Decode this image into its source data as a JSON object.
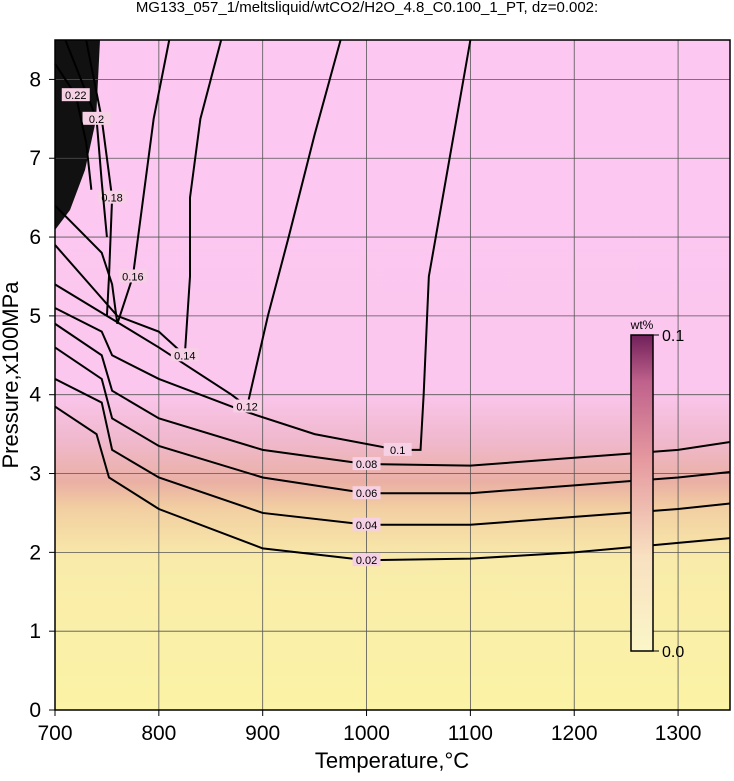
{
  "chart_data": {
    "type": "contour",
    "title": "MG133_057_1/meltsliquid/wtCO2/H2O_4.8_C0.100_1_PT, dz=0.002:",
    "x_label": "Temperature,°C",
    "y_label": "Pressure,x100MPa",
    "xlim": [
      700,
      1350
    ],
    "ylim": [
      0,
      8.5
    ],
    "xticks": [
      700,
      800,
      900,
      1000,
      1100,
      1200,
      1300
    ],
    "yticks": [
      0,
      1,
      2,
      3,
      4,
      5,
      6,
      7,
      8
    ],
    "grid": true,
    "colorbar": {
      "label": "wt%",
      "lim": [
        0,
        0.1
      ],
      "ticks": [
        {
          "value": 0,
          "label": "0.0"
        },
        0.1
      ]
    },
    "contours": [
      {
        "level": 0.02,
        "x": [
          700,
          740,
          752,
          800,
          900,
          1000,
          1100,
          1200,
          1300,
          1350
        ],
        "y": [
          3.85,
          3.5,
          2.95,
          2.55,
          2.05,
          1.9,
          1.92,
          2.0,
          2.12,
          2.18
        ]
      },
      {
        "level": 0.04,
        "x": [
          700,
          745,
          755,
          800,
          900,
          1000,
          1100,
          1200,
          1300,
          1350
        ],
        "y": [
          4.2,
          3.9,
          3.3,
          2.95,
          2.5,
          2.35,
          2.35,
          2.45,
          2.55,
          2.62
        ]
      },
      {
        "level": 0.06,
        "x": [
          700,
          745,
          755,
          800,
          900,
          1000,
          1100,
          1200,
          1300,
          1350
        ],
        "y": [
          4.6,
          4.2,
          3.7,
          3.35,
          2.95,
          2.75,
          2.75,
          2.85,
          2.95,
          3.02
        ]
      },
      {
        "level": 0.08,
        "x": [
          700,
          745,
          755,
          800,
          900,
          1000,
          1100,
          1200,
          1300,
          1350
        ],
        "y": [
          4.9,
          4.5,
          4.05,
          3.7,
          3.3,
          3.12,
          3.1,
          3.2,
          3.3,
          3.4
        ]
      },
      {
        "level": 0.1,
        "x": [
          700,
          745,
          755,
          800,
          880,
          950,
          1030,
          1052,
          1055,
          1060,
          1080,
          1100
        ],
        "y": [
          5.1,
          4.8,
          4.5,
          4.2,
          3.8,
          3.5,
          3.3,
          3.3,
          4.0,
          5.5,
          7.0,
          8.5
        ]
      },
      {
        "level": 0.12,
        "x": [
          700,
          750,
          800,
          870,
          885,
          905,
          925,
          950,
          975
        ],
        "y": [
          5.4,
          5.0,
          4.6,
          4.0,
          3.85,
          5.0,
          6.0,
          7.3,
          8.5
        ]
      },
      {
        "level": 0.14,
        "x": [
          700,
          740,
          760,
          800,
          825,
          830,
          830,
          840,
          860
        ],
        "y": [
          5.9,
          5.3,
          5.0,
          4.8,
          4.5,
          5.5,
          6.5,
          7.5,
          8.5
        ]
      },
      {
        "level": 0.16,
        "x": [
          700,
          745,
          755,
          760,
          775,
          785,
          795,
          810
        ],
        "y": [
          6.4,
          5.8,
          5.4,
          4.9,
          5.5,
          6.5,
          7.5,
          8.5
        ]
      },
      {
        "level": 0.18,
        "x": [
          750,
          752,
          755,
          745,
          730
        ],
        "y": [
          5.0,
          5.5,
          6.5,
          7.5,
          8.5
        ]
      },
      {
        "level": 0.2,
        "x": [
          750,
          745,
          740,
          710
        ],
        "y": [
          6.0,
          6.7,
          7.5,
          8.5
        ]
      },
      {
        "level": 0.22,
        "x": [
          735,
          730,
          720,
          700
        ],
        "y": [
          6.6,
          7.2,
          7.8,
          8.2
        ]
      }
    ]
  }
}
